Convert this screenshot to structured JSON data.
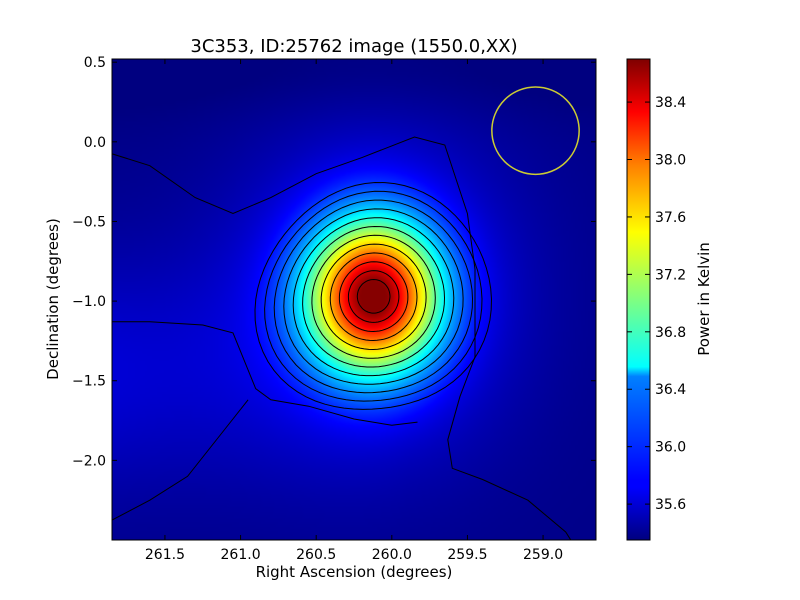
{
  "chart_data": {
    "type": "heatmap",
    "title": "3C353, ID:25762 image (1550.0,XX)",
    "xlabel": "Right Ascension (degrees)",
    "ylabel": "Declination (degrees)",
    "xlim": [
      261.85,
      258.65
    ],
    "ylim": [
      -2.5,
      0.52
    ],
    "x_ticks": [
      261.5,
      261.0,
      260.5,
      260.0,
      259.5,
      259.0
    ],
    "x_tick_labels": [
      "261.5",
      "261.0",
      "260.5",
      "260.0",
      "259.5",
      "259.0"
    ],
    "y_ticks": [
      0.5,
      0.0,
      -0.5,
      -1.0,
      -1.5,
      -2.0
    ],
    "y_tick_labels": [
      "0.5",
      "0.0",
      "−0.5",
      "−1.0",
      "−1.5",
      "−2.0"
    ],
    "grid": false,
    "colorbar": {
      "label": "Power in Kelvin",
      "range": [
        35.35,
        38.7
      ],
      "ticks": [
        35.6,
        36.0,
        36.4,
        36.8,
        37.2,
        37.6,
        38.0,
        38.4
      ],
      "tick_labels": [
        "35.6",
        "36.0",
        "36.4",
        "36.8",
        "37.2",
        "37.6",
        "38.0",
        "38.4"
      ],
      "colormap": "jet"
    },
    "source": {
      "ra": 260.12,
      "dec": -0.97,
      "peak": 38.6
    },
    "beam_circle": {
      "ra": 259.05,
      "dec": 0.07,
      "radius_deg": 0.37,
      "color": "#cccc33"
    },
    "contour_color": "#000000"
  }
}
